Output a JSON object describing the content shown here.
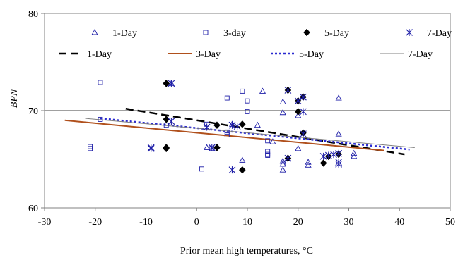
{
  "chart_data": {
    "type": "scatter",
    "xlabel": "Prior mean high temperatures, °C",
    "ylabel": "BPN",
    "xlim": [
      -30,
      50
    ],
    "ylim": [
      60,
      80
    ],
    "xticks": [
      -30,
      -20,
      -10,
      0,
      10,
      20,
      30,
      40,
      50
    ],
    "yticks": [
      60,
      70,
      80
    ],
    "gridlines_y": [
      70
    ],
    "legend_position": "top",
    "series": [
      {
        "name": "1-Day",
        "kind": "points",
        "marker": "triangle",
        "color": "#1f1fa8",
        "points": [
          [
            -5,
            72.8
          ],
          [
            2,
            66.2
          ],
          [
            7,
            68.6
          ],
          [
            9,
            64.9
          ],
          [
            12,
            68.5
          ],
          [
            13,
            72
          ],
          [
            15,
            66.8
          ],
          [
            17,
            64.8
          ],
          [
            17,
            64.5
          ],
          [
            17,
            70.9
          ],
          [
            17,
            63.9
          ],
          [
            17,
            69.8
          ],
          [
            18,
            65.1
          ],
          [
            20,
            69.5
          ],
          [
            20,
            66.1
          ],
          [
            22,
            64.7
          ],
          [
            22,
            64.4
          ],
          [
            28,
            71.3
          ],
          [
            28,
            67.6
          ],
          [
            31,
            65.6
          ],
          [
            31,
            65.3
          ]
        ]
      },
      {
        "name": "3-day",
        "kind": "points",
        "marker": "square",
        "color": "#1f1fa8",
        "points": [
          [
            -21,
            66.3
          ],
          [
            -21,
            66.1
          ],
          [
            -19,
            72.9
          ],
          [
            -19,
            69.1
          ],
          [
            -6,
            68.5
          ],
          [
            1,
            64
          ],
          [
            2,
            68.6
          ],
          [
            3,
            66.1
          ],
          [
            6,
            71.3
          ],
          [
            6,
            67.8
          ],
          [
            6,
            67.5
          ],
          [
            9,
            72
          ],
          [
            10,
            71
          ],
          [
            10,
            69.9
          ],
          [
            14,
            66.9
          ],
          [
            14,
            65.8
          ],
          [
            14,
            65.5
          ],
          [
            14,
            65.4
          ],
          [
            17,
            64.5
          ]
        ]
      },
      {
        "name": "5-Day",
        "kind": "points",
        "marker": "diamond",
        "color": "#000000",
        "points": [
          [
            -6,
            72.8
          ],
          [
            -6,
            69.1
          ],
          [
            -6,
            66.2
          ],
          [
            -6,
            66.1
          ],
          [
            4,
            68.5
          ],
          [
            4,
            66.2
          ],
          [
            9,
            68.6
          ],
          [
            9,
            63.9
          ],
          [
            18,
            72.1
          ],
          [
            18,
            65.1
          ],
          [
            20,
            71
          ],
          [
            20,
            69.9
          ],
          [
            21,
            71.4
          ],
          [
            21,
            67.7
          ],
          [
            25,
            64.6
          ],
          [
            26,
            65.3
          ],
          [
            28,
            65.5
          ]
        ]
      },
      {
        "name": "7-Day",
        "kind": "points",
        "marker": "asterisk",
        "color": "#1f1fa8",
        "points": [
          [
            -9,
            66.2
          ],
          [
            -9,
            66.1
          ],
          [
            -5,
            72.8
          ],
          [
            -5,
            68.9
          ],
          [
            2,
            68.3
          ],
          [
            3,
            66.2
          ],
          [
            7,
            68.5
          ],
          [
            7,
            63.9
          ],
          [
            8,
            68.4
          ],
          [
            18,
            72.1
          ],
          [
            18,
            65.1
          ],
          [
            20,
            71
          ],
          [
            21,
            71.4
          ],
          [
            21,
            69.9
          ],
          [
            21,
            67.6
          ],
          [
            25,
            65.3
          ],
          [
            26,
            65.4
          ],
          [
            27,
            65.5
          ],
          [
            28,
            64.5
          ],
          [
            28,
            64.7
          ],
          [
            28,
            65.6
          ]
        ]
      },
      {
        "name": "1-Day",
        "kind": "trendline",
        "style": "dashed",
        "color": "#000000",
        "line": [
          [
            -14,
            70.2
          ],
          [
            41,
            65.5
          ]
        ]
      },
      {
        "name": "3-Day",
        "kind": "trendline",
        "style": "solid",
        "color": "#b0501c",
        "line": [
          [
            -26,
            69.0
          ],
          [
            37,
            65.9
          ]
        ]
      },
      {
        "name": "5-Day",
        "kind": "trendline",
        "style": "dotted",
        "color": "#2a2ad0",
        "line": [
          [
            -19,
            69.2
          ],
          [
            42,
            66.0
          ]
        ]
      },
      {
        "name": "7-Day",
        "kind": "trendline",
        "style": "thin",
        "color": "#808080",
        "line": [
          [
            -22,
            69.2
          ],
          [
            43,
            66.2
          ]
        ]
      }
    ]
  }
}
